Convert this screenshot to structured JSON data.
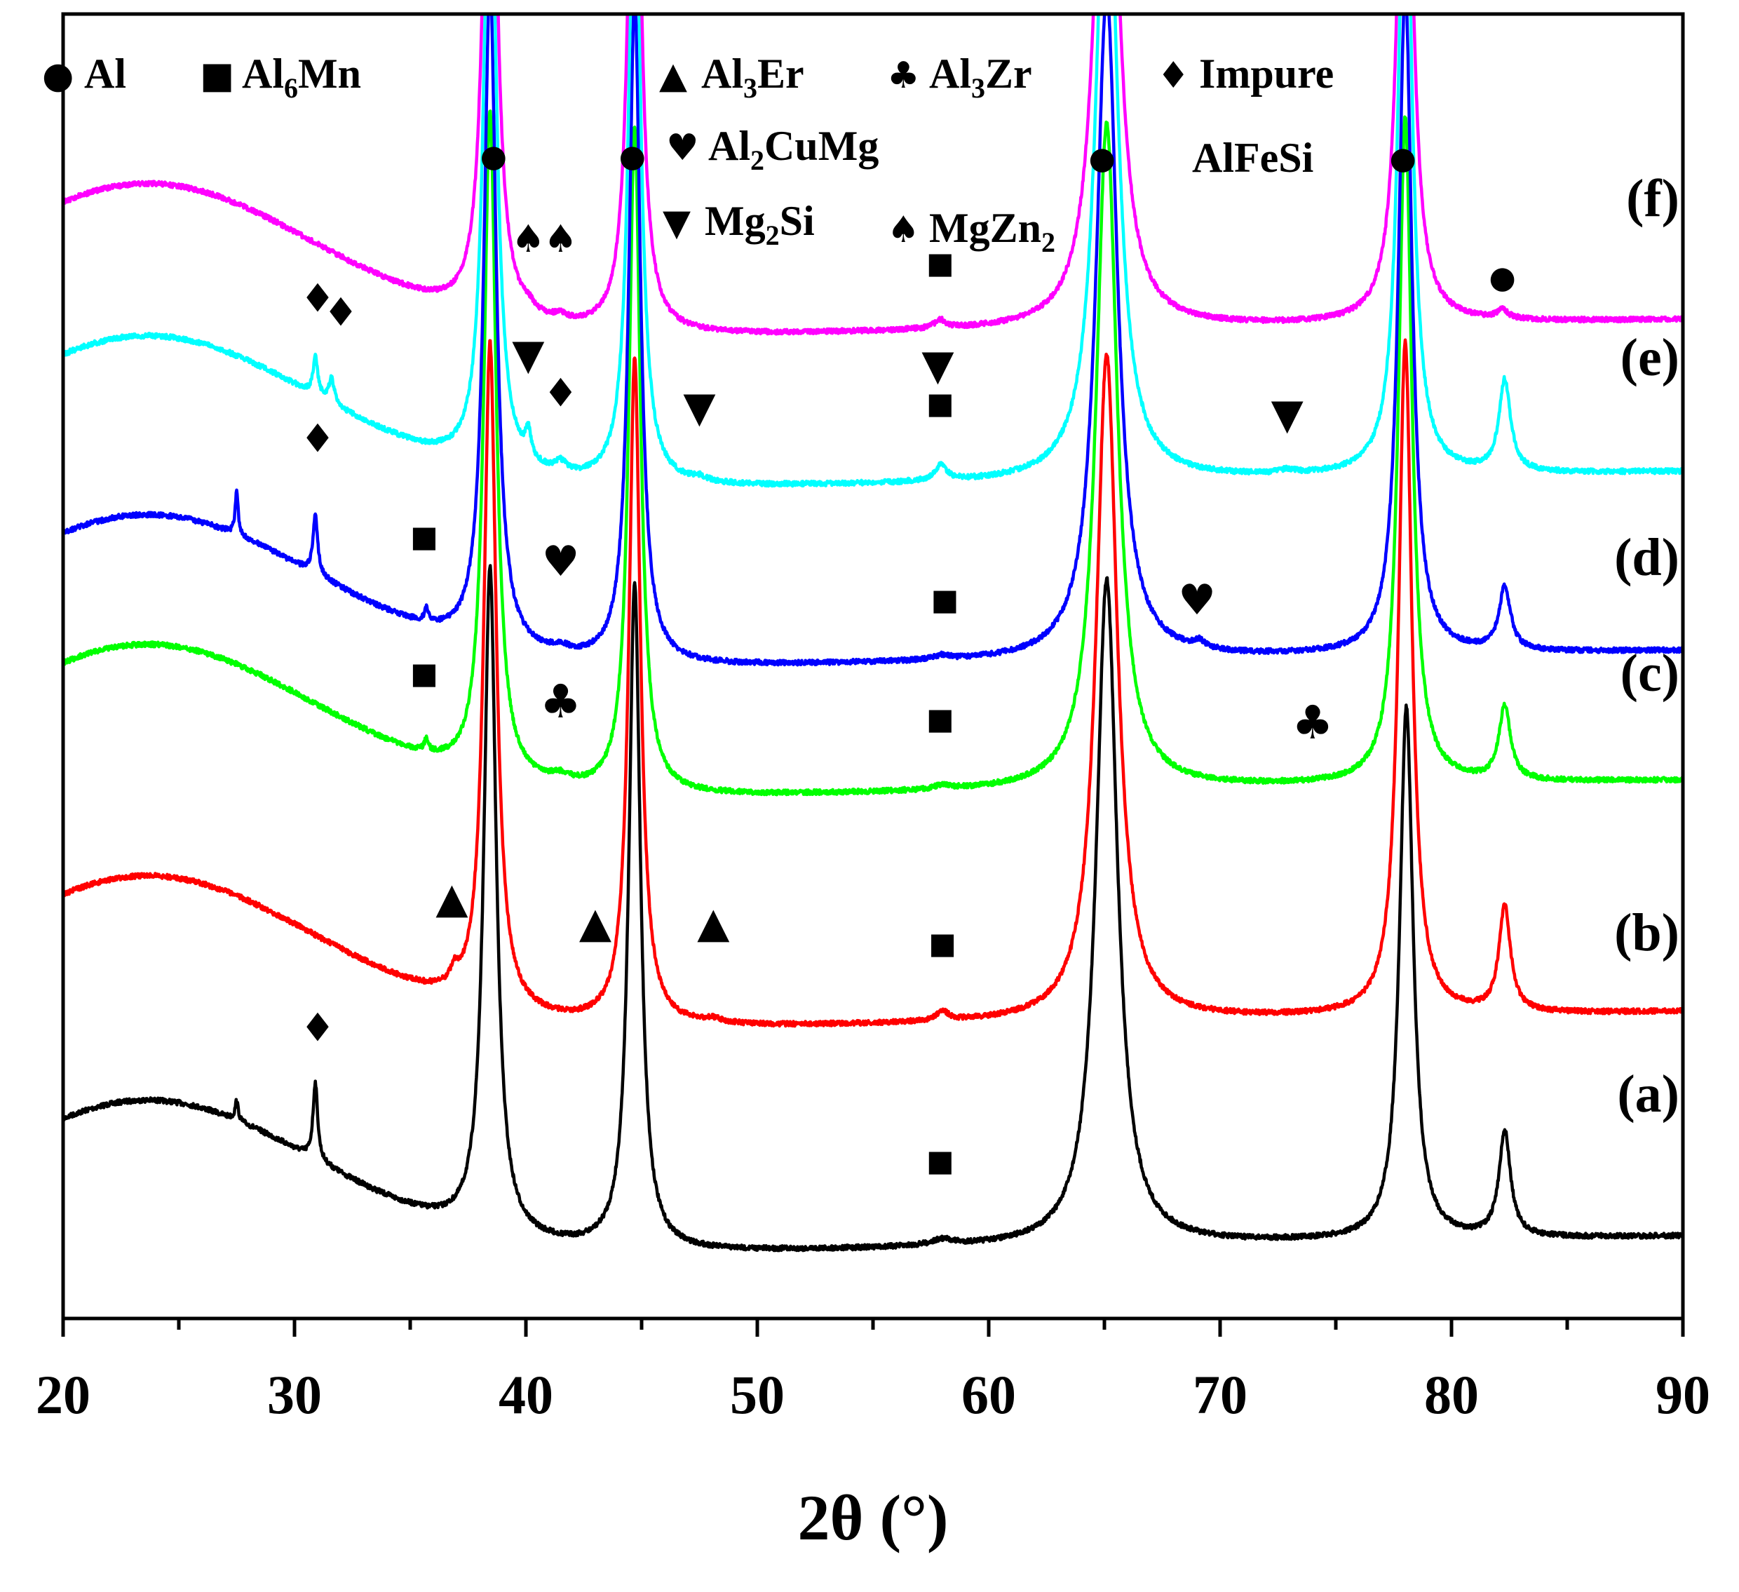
{
  "chart_data": {
    "type": "line",
    "title": "",
    "xlabel": "2θ (°)",
    "ylabel": "",
    "xlim": [
      20,
      90
    ],
    "xticks": [
      20,
      30,
      40,
      50,
      60,
      70,
      80,
      90
    ],
    "xtick_labels": [
      "20",
      "30",
      "40",
      "50",
      "60",
      "70",
      "80",
      "90"
    ],
    "series": [
      {
        "name": "(a)",
        "label": "(a)",
        "color": "#000000",
        "baseline": 1785,
        "slope": 80,
        "hump": 230,
        "peaks": [
          [
            27.5,
            28,
            0.08
          ],
          [
            30.9,
            110,
            0.12
          ],
          [
            38.45,
            950,
            0.32
          ],
          [
            44.7,
            950,
            0.3
          ],
          [
            65.1,
            950,
            0.55
          ],
          [
            78.05,
            760,
            0.35
          ],
          [
            82.3,
            150,
            0.3
          ],
          [
            58.0,
            8,
            0.6
          ]
        ]
      },
      {
        "name": "(b)",
        "label": "(b)",
        "color": "#ff0000",
        "baseline": 1465,
        "slope": 80,
        "hump": 230,
        "peaks": [
          [
            36.9,
            20,
            0.2
          ],
          [
            38.45,
            950,
            0.32
          ],
          [
            44.7,
            950,
            0.3
          ],
          [
            65.1,
            950,
            0.55
          ],
          [
            78.0,
            960,
            0.35
          ],
          [
            82.3,
            150,
            0.3
          ],
          [
            58.0,
            14,
            0.3
          ],
          [
            48.1,
            6,
            0.5
          ]
        ]
      },
      {
        "name": "(c)",
        "label": "(c)",
        "color": "#00ff00",
        "baseline": 1135,
        "slope": 80,
        "hump": 230,
        "peaks": [
          [
            35.7,
            18,
            0.1
          ],
          [
            38.45,
            950,
            0.32
          ],
          [
            44.7,
            950,
            0.3
          ],
          [
            65.1,
            950,
            0.55
          ],
          [
            78.0,
            950,
            0.35
          ],
          [
            82.3,
            105,
            0.3
          ],
          [
            41.5,
            10,
            0.5
          ],
          [
            58.0,
            6,
            0.4
          ]
        ]
      },
      {
        "name": "(d)",
        "label": "(d)",
        "color": "#0000ff",
        "baseline": 950,
        "slope": 80,
        "hump": 230,
        "peaks": [
          [
            27.5,
            60,
            0.08
          ],
          [
            30.9,
            85,
            0.12
          ],
          [
            35.7,
            18,
            0.1
          ],
          [
            38.45,
            950,
            0.32
          ],
          [
            44.7,
            950,
            0.3
          ],
          [
            65.1,
            950,
            0.55
          ],
          [
            78.0,
            950,
            0.35
          ],
          [
            82.3,
            90,
            0.3
          ],
          [
            41.5,
            8,
            0.5
          ],
          [
            69.1,
            10,
            0.3
          ],
          [
            58.0,
            6,
            0.4
          ]
        ]
      },
      {
        "name": "(e)",
        "label": "(e)",
        "color": "#00ffff",
        "baseline": 695,
        "slope": 80,
        "hump": 230,
        "peaks": [
          [
            30.9,
            55,
            0.12
          ],
          [
            31.6,
            35,
            0.15
          ],
          [
            38.45,
            950,
            0.32
          ],
          [
            40.1,
            38,
            0.15
          ],
          [
            41.5,
            14,
            0.3
          ],
          [
            44.7,
            950,
            0.3
          ],
          [
            47.5,
            6,
            0.4
          ],
          [
            57.95,
            22,
            0.3
          ],
          [
            65.1,
            950,
            0.55
          ],
          [
            72.9,
            5,
            0.4
          ],
          [
            78.0,
            950,
            0.35
          ],
          [
            82.3,
            130,
            0.3
          ]
        ]
      },
      {
        "name": "(f)",
        "label": "(f)",
        "color": "#ff00ff",
        "baseline": 478,
        "slope": 80,
        "hump": 230,
        "peaks": [
          [
            38.45,
            950,
            0.32
          ],
          [
            40.1,
            8,
            0.3
          ],
          [
            41.5,
            8,
            0.3
          ],
          [
            44.7,
            950,
            0.3
          ],
          [
            57.9,
            12,
            0.3
          ],
          [
            65.1,
            950,
            0.55
          ],
          [
            78.0,
            950,
            0.35
          ],
          [
            82.2,
            12,
            0.3
          ]
        ]
      }
    ],
    "legend": [
      {
        "symbol": "●",
        "text": "Al"
      },
      {
        "symbol": "■",
        "text": "Al",
        "sub": "6",
        "text2": "Mn"
      },
      {
        "symbol": "▲",
        "text": "Al",
        "sub": "3",
        "text2": "Er"
      },
      {
        "symbol": "♣",
        "text": "Al",
        "sub": "3",
        "text2": "Zr"
      },
      {
        "symbol": "♦",
        "text": "Impure"
      },
      {
        "symbol": "",
        "text": "AlFeSi"
      },
      {
        "symbol": "♥",
        "text": "Al",
        "sub": "2",
        "text2": "CuMg"
      },
      {
        "symbol": "▼",
        "text": "Mg",
        "sub": "2",
        "text2": "Si"
      },
      {
        "symbol": "♠",
        "text": "MgZn",
        "sub": "2",
        "text2": ""
      }
    ],
    "annotations": [
      {
        "trace": "(f)",
        "symbol": "●",
        "x": 38.6
      },
      {
        "trace": "(f)",
        "symbol": "●",
        "x": 44.6
      },
      {
        "trace": "(f)",
        "symbol": "●",
        "x": 64.9
      },
      {
        "trace": "(f)",
        "symbol": "●",
        "x": 77.9
      },
      {
        "trace": "(f)",
        "symbol": "●",
        "x": 82.2
      },
      {
        "trace": "(f)",
        "symbol": "♠",
        "x": 40.1
      },
      {
        "trace": "(f)",
        "symbol": "♠",
        "x": 41.5
      },
      {
        "trace": "(f)",
        "symbol": "■",
        "x": 57.9
      },
      {
        "trace": "(e)",
        "symbol": "♦",
        "x": 31.0
      },
      {
        "trace": "(e)",
        "symbol": "♦",
        "x": 32.0
      },
      {
        "trace": "(e)",
        "symbol": "▼",
        "x": 40.1
      },
      {
        "trace": "(e)",
        "symbol": "♦",
        "x": 41.5
      },
      {
        "trace": "(e)",
        "symbol": "▼",
        "x": 47.5
      },
      {
        "trace": "(e)",
        "symbol": "▼",
        "x": 57.8
      },
      {
        "trace": "(e)",
        "symbol": "■",
        "x": 57.9
      },
      {
        "trace": "(e)",
        "symbol": "▼",
        "x": 72.9
      },
      {
        "trace": "(d)",
        "symbol": "♦",
        "x": 31.0
      },
      {
        "trace": "(d)",
        "symbol": "■",
        "x": 35.6
      },
      {
        "trace": "(d)",
        "symbol": "♥",
        "x": 41.5
      },
      {
        "trace": "(d)",
        "symbol": "■",
        "x": 58.1
      },
      {
        "trace": "(d)",
        "symbol": "♥",
        "x": 69.0
      },
      {
        "trace": "(c)",
        "symbol": "■",
        "x": 35.6
      },
      {
        "trace": "(c)",
        "symbol": "♣",
        "x": 41.5
      },
      {
        "trace": "(c)",
        "symbol": "■",
        "x": 57.9
      },
      {
        "trace": "(c)",
        "symbol": "♣",
        "x": 74.0
      },
      {
        "trace": "(b)",
        "symbol": "▲",
        "x": 36.8
      },
      {
        "trace": "(b)",
        "symbol": "▲",
        "x": 43.0
      },
      {
        "trace": "(b)",
        "symbol": "▲",
        "x": 48.1
      },
      {
        "trace": "(b)",
        "symbol": "■",
        "x": 58.0
      },
      {
        "trace": "(a)",
        "symbol": "♦",
        "x": 31.0
      },
      {
        "trace": "(a)",
        "symbol": "■",
        "x": 57.9
      }
    ]
  }
}
